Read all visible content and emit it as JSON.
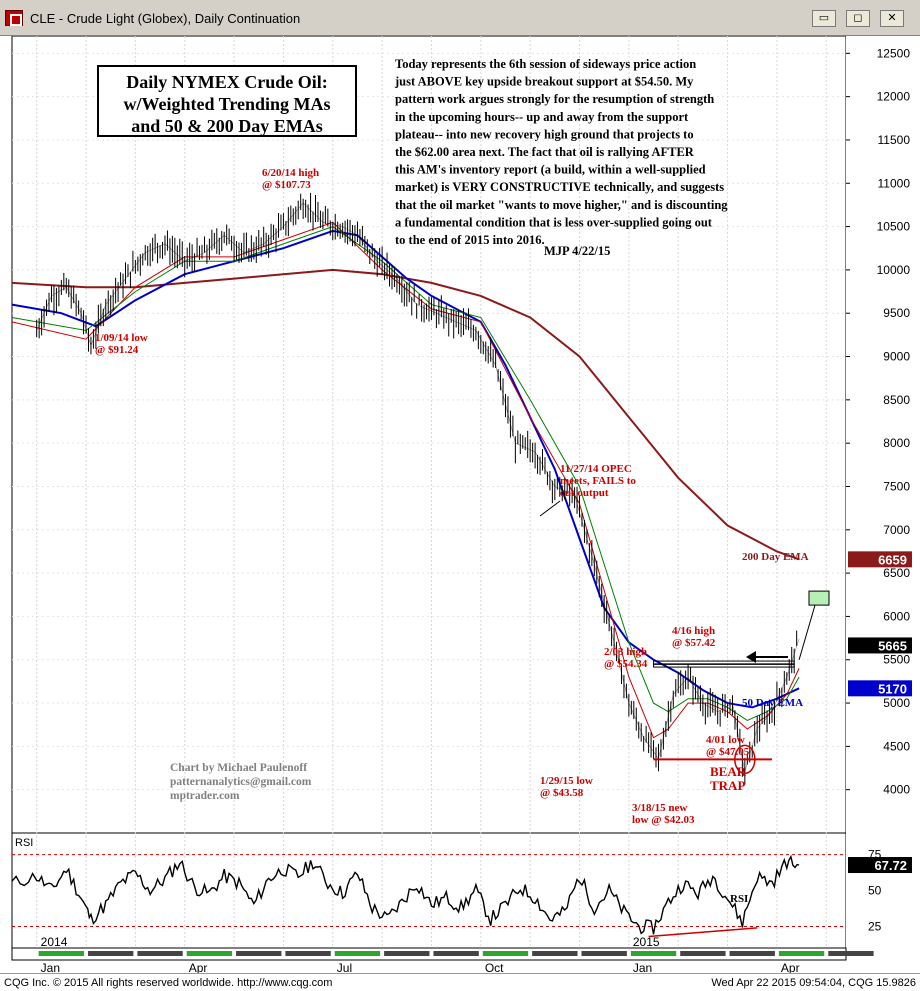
{
  "window": {
    "title": "CLE - Crude Light (Globex), Daily Continuation",
    "buttons": [
      "▭",
      "◻",
      "✕"
    ]
  },
  "footer": {
    "left": "CQG Inc. © 2015 All rights reserved worldwide. http://www.cqg.com",
    "right": "Wed Apr 22 2015 09:54:04, CQG 15.9826"
  },
  "chart_data": {
    "type": "line",
    "symbol": "CLE",
    "price_axis": {
      "ylim": [
        3500,
        12700
      ],
      "ticks": [
        12500,
        12000,
        11500,
        11000,
        10500,
        10000,
        9500,
        9000,
        8500,
        8000,
        7500,
        7000,
        6500,
        6000,
        5500,
        5000,
        4500,
        4000
      ]
    },
    "x_axis": {
      "labels": [
        "2014",
        "Jan",
        "Apr",
        "Jul",
        "Oct",
        "2015",
        "Jan",
        "Apr"
      ],
      "label_month_index": [
        0,
        0,
        3,
        6,
        9,
        12,
        12,
        15
      ],
      "months_span": [
        -0.5,
        16.4
      ]
    },
    "price_boxes": [
      {
        "value": 6659,
        "text": "6659",
        "bg": "#8b1a1a",
        "fg": "#ffffff"
      },
      {
        "value": 5665,
        "text": "5665",
        "bg": "#000000",
        "fg": "#ffffff"
      },
      {
        "value": 5170,
        "text": "5170",
        "bg": "#0000cc",
        "fg": "#ffffff"
      }
    ],
    "series": [
      {
        "role": "price",
        "color": "#000000",
        "x": [
          0,
          0.3,
          0.6,
          0.9,
          1.1,
          1.4,
          1.8,
          2.2,
          2.6,
          3.0,
          3.4,
          3.8,
          4.2,
          4.6,
          5.0,
          5.4,
          5.8,
          6.2,
          6.5,
          6.9,
          7.3,
          7.7,
          8.1,
          8.5,
          8.9,
          9.3,
          9.7,
          10.1,
          10.5,
          10.9,
          11.3,
          11.7,
          12.0,
          12.3,
          12.6,
          12.9,
          13.2,
          13.5,
          13.8,
          14.1,
          14.35,
          14.6,
          14.9,
          15.2,
          15.45
        ],
        "y": [
          9300,
          9700,
          9800,
          9500,
          9124,
          9600,
          9900,
          10200,
          10300,
          10100,
          10200,
          10400,
          10200,
          10300,
          10500,
          10773,
          10550,
          10500,
          10400,
          10100,
          9900,
          9600,
          9500,
          9400,
          9300,
          8900,
          8000,
          7900,
          7500,
          7400,
          6600,
          5700,
          5000,
          4600,
          4358,
          5100,
          5300,
          5000,
          4900,
          5000,
          4203,
          4705,
          4900,
          5300,
          5742
        ]
      },
      {
        "role": "ema200",
        "color": "#8b1a1a",
        "x": [
          -0.5,
          1,
          2,
          3,
          4,
          5,
          6,
          7,
          8,
          9,
          10,
          11,
          12,
          13,
          14,
          15,
          15.45
        ],
        "y": [
          9850,
          9800,
          9800,
          9850,
          9900,
          9950,
          10000,
          9950,
          9850,
          9700,
          9450,
          9000,
          8300,
          7600,
          7050,
          6750,
          6659
        ]
      },
      {
        "role": "ema50",
        "color": "#0000cc",
        "x": [
          -0.5,
          0.5,
          1.2,
          2,
          3,
          4,
          5,
          6,
          6.5,
          7,
          7.5,
          8,
          8.5,
          9,
          9.5,
          10,
          10.5,
          11,
          11.5,
          12,
          12.5,
          13,
          13.5,
          14,
          14.5,
          15,
          15.45
        ],
        "y": [
          9600,
          9500,
          9350,
          9650,
          9950,
          10100,
          10250,
          10450,
          10400,
          10150,
          9900,
          9700,
          9550,
          9400,
          8900,
          8300,
          7700,
          6900,
          6100,
          5700,
          5500,
          5350,
          5150,
          5000,
          4950,
          5050,
          5170
        ]
      },
      {
        "role": "ma_fast",
        "color": "#cc0000",
        "x": [
          -0.5,
          1,
          2,
          3,
          4,
          5,
          6,
          7,
          8,
          9,
          10,
          11,
          11.5,
          12,
          12.5,
          12.8,
          13.2,
          13.6,
          14,
          14.4,
          14.8,
          15.2,
          15.45
        ],
        "y": [
          9400,
          9200,
          9800,
          10150,
          10150,
          10350,
          10550,
          10000,
          9550,
          9400,
          8300,
          7300,
          6300,
          5300,
          4600,
          4700,
          5000,
          5000,
          4900,
          4700,
          4850,
          5100,
          5400
        ]
      },
      {
        "role": "ma_mid",
        "color": "#008000",
        "x": [
          -0.5,
          1,
          2,
          3,
          4,
          5,
          6,
          7,
          8,
          9,
          10,
          11,
          11.5,
          12,
          12.5,
          12.8,
          13.2,
          13.6,
          14,
          14.4,
          14.8,
          15.2,
          15.45
        ],
        "y": [
          9450,
          9300,
          9750,
          10100,
          10100,
          10300,
          10500,
          10100,
          9600,
          9450,
          8500,
          7500,
          6600,
          5700,
          5000,
          4900,
          5050,
          5050,
          4950,
          4800,
          4900,
          5050,
          5300
        ]
      }
    ],
    "texts": {
      "title_box": [
        "Daily NYMEX Crude Oil:",
        "w/Weighted Trending MAs",
        "and 50 & 200 Day EMAs"
      ],
      "commentary": [
        "Today represents the 6th session of sideways price action",
        "just ABOVE key upside breakout support at $54.50. My",
        "pattern work argues strongly for the resumption of strength",
        "in the upcoming hours-- up and away from the support",
        "plateau-- into new recovery high ground that projects to",
        "the $62.00 area next. The fact that oil is rallying AFTER",
        "this AM's inventory report (a build, within a well-supplied",
        "market) is VERY CONSTRUCTIVE technically, and suggests",
        "that the oil market \"wants to move higher,\" and is discounting",
        "a fundamental condition that is less over-supplied going out",
        "to the end of 2015 into 2016."
      ],
      "signature": "MJP  4/22/15",
      "credits": [
        "Chart by Michael Paulenoff",
        "patternanalytics@gmail.com",
        "mptrader.com"
      ]
    },
    "annotations": [
      {
        "lines": [
          "6/20/14 high",
          "@ $107.73"
        ],
        "color": "#cc0000"
      },
      {
        "lines": [
          "1/09/14 low",
          "@ $91.24"
        ],
        "color": "#cc0000"
      },
      {
        "lines": [
          "11/27/14 OPEC",
          "meets, FAILS to",
          "cut output"
        ],
        "color": "#cc0000"
      },
      {
        "lines": [
          "200 Day EMA"
        ],
        "color": "#8b1a1a"
      },
      {
        "lines": [
          "4/16 high",
          "@ $57.42"
        ],
        "color": "#cc0000"
      },
      {
        "lines": [
          "2/03 high",
          "@ $54.34"
        ],
        "color": "#cc0000"
      },
      {
        "lines": [
          "50 Day EMA"
        ],
        "color": "#0000cc"
      },
      {
        "lines": [
          "4/01 low",
          "@ $47.05"
        ],
        "color": "#cc0000"
      },
      {
        "lines": [
          "BEAR",
          "TRAP"
        ],
        "color": "#cc0000"
      },
      {
        "lines": [
          "1/29/15 low",
          "@ $43.58"
        ],
        "color": "#cc0000"
      },
      {
        "lines": [
          "3/18/15 new",
          "low @ $42.03"
        ],
        "color": "#cc0000"
      }
    ],
    "levels": {
      "support": 5450,
      "bear_trap": 4350,
      "target": 6200
    },
    "rsi": {
      "label": "RSI",
      "series_label": "RSI",
      "ylim": [
        10,
        90
      ],
      "ticks": [
        75,
        50,
        25
      ],
      "current": {
        "value": 67.72,
        "text": "67.72"
      },
      "x": [
        -0.5,
        0,
        0.3,
        0.6,
        0.9,
        1.1,
        1.4,
        1.7,
        2.0,
        2.3,
        2.6,
        2.9,
        3.2,
        3.5,
        3.8,
        4.1,
        4.4,
        4.7,
        5.0,
        5.3,
        5.6,
        5.9,
        6.2,
        6.5,
        6.8,
        7.1,
        7.4,
        7.7,
        8.0,
        8.3,
        8.6,
        8.9,
        9.2,
        9.5,
        9.8,
        10.1,
        10.4,
        10.7,
        11.0,
        11.3,
        11.6,
        11.9,
        12.2,
        12.5,
        12.8,
        13.1,
        13.4,
        13.7,
        14.0,
        14.3,
        14.6,
        14.9,
        15.2,
        15.45
      ],
      "y": [
        55,
        60,
        50,
        65,
        45,
        30,
        40,
        55,
        62,
        50,
        58,
        70,
        52,
        48,
        60,
        55,
        40,
        58,
        65,
        60,
        70,
        55,
        48,
        62,
        38,
        30,
        42,
        55,
        40,
        45,
        38,
        50,
        30,
        40,
        52,
        45,
        30,
        35,
        60,
        38,
        50,
        35,
        25,
        24,
        42,
        55,
        48,
        60,
        45,
        28,
        60,
        55,
        70,
        67.72
      ]
    }
  }
}
